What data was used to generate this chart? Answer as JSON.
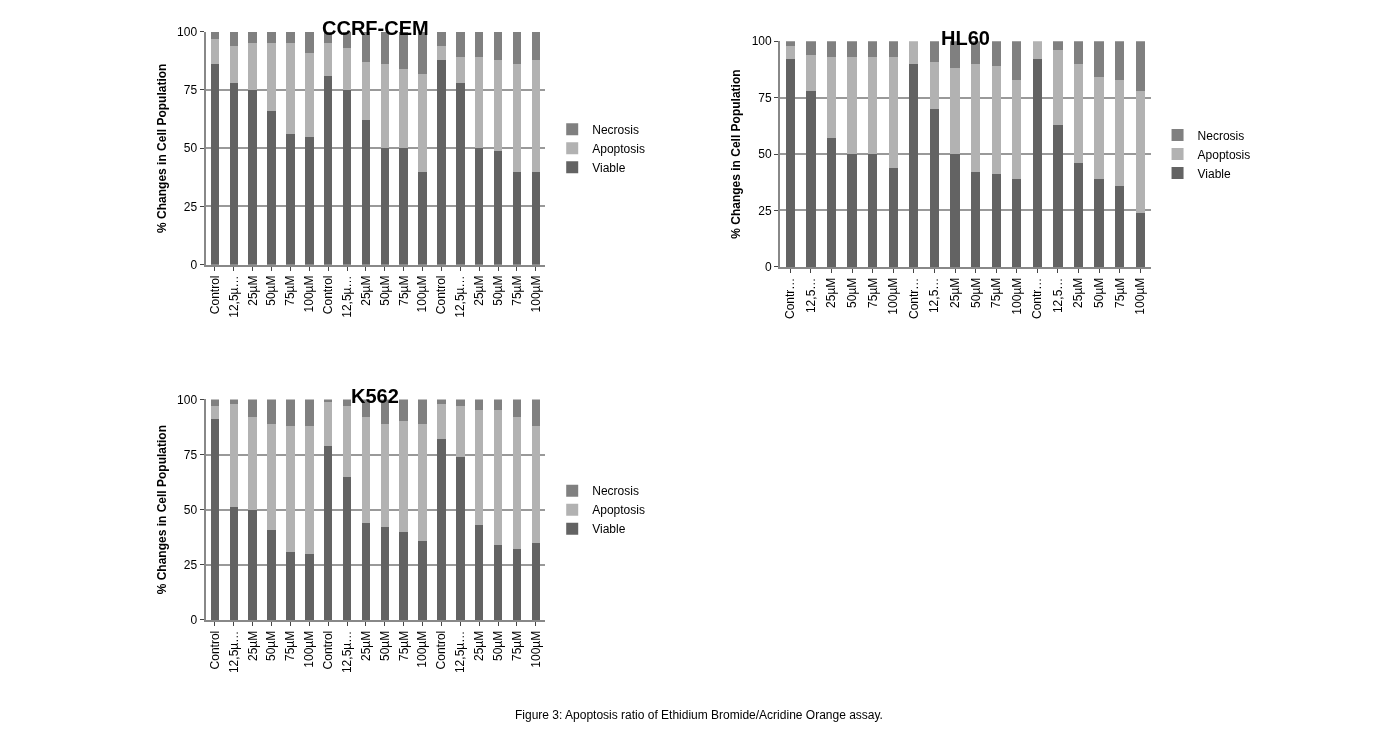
{
  "chart_data": [
    {
      "type": "bar",
      "stacked": true,
      "title": "CCRF-CEM",
      "ylabel": "% Changes in Cell Population",
      "categories": [
        "Control",
        "12,5µ…",
        "25µM",
        "50µM",
        "75µM",
        "100µM",
        "Control",
        "12,5µ…",
        "25µM",
        "50µM",
        "75µM",
        "100µM",
        "Control",
        "12,5µ…",
        "25µM",
        "50µM",
        "75µM",
        "100µM"
      ],
      "ylim": [
        0,
        100
      ],
      "yticks": [
        0,
        25,
        50,
        75,
        100
      ],
      "grid": "y",
      "legend": "right",
      "series": [
        {
          "name": "Viable",
          "color": "#636363",
          "values": [
            86,
            78,
            75,
            66,
            56,
            55,
            81,
            75,
            62,
            50,
            50,
            40,
            88,
            78,
            50,
            49,
            40,
            40
          ]
        },
        {
          "name": "Apoptosis",
          "color": "#b2b2b2",
          "values": [
            11,
            16,
            20,
            29,
            39,
            36,
            14,
            18,
            25,
            36,
            34,
            42,
            6,
            11,
            39,
            39,
            46,
            48
          ]
        },
        {
          "name": "Necrosis",
          "color": "#808080",
          "values": [
            3,
            6,
            5,
            5,
            5,
            9,
            5,
            7,
            13,
            14,
            16,
            18,
            6,
            11,
            11,
            12,
            14,
            12
          ]
        }
      ]
    },
    {
      "type": "bar",
      "stacked": true,
      "title": "HL60",
      "ylabel": "% Changes in Cell Population",
      "categories": [
        "Contr…",
        "12,5…",
        "25µM",
        "50µM",
        "75µM",
        "100µM",
        "Contr…",
        "12,5…",
        "25µM",
        "50µM",
        "75µM",
        "100µM",
        "Contr…",
        "12,5…",
        "25µM",
        "50µM",
        "75µM",
        "100µM"
      ],
      "ylim": [
        0,
        100
      ],
      "yticks": [
        0,
        25,
        50,
        75,
        100
      ],
      "grid": "y",
      "legend": "right",
      "series": [
        {
          "name": "Viable",
          "color": "#636363",
          "values": [
            92,
            78,
            57,
            50,
            50,
            44,
            90,
            70,
            50,
            42,
            41,
            39,
            92,
            63,
            46,
            39,
            36,
            24
          ]
        },
        {
          "name": "Apoptosis",
          "color": "#b2b2b2",
          "values": [
            6,
            16,
            36,
            43,
            43,
            49,
            10,
            21,
            38,
            48,
            48,
            44,
            8,
            33,
            44,
            45,
            47,
            54
          ]
        },
        {
          "name": "Necrosis",
          "color": "#808080",
          "values": [
            2,
            6,
            7,
            7,
            7,
            7,
            0,
            9,
            12,
            10,
            11,
            17,
            0,
            4,
            10,
            16,
            17,
            22
          ]
        }
      ]
    },
    {
      "type": "bar",
      "stacked": true,
      "title": "K562",
      "ylabel": "% Changes in Cell Population",
      "categories": [
        "Control",
        "12,5µ…",
        "25µM",
        "50µM",
        "75µM",
        "100µM",
        "Control",
        "12,5µ…",
        "25µM",
        "50µM",
        "75µM",
        "100µM",
        "Control",
        "12,5µ…",
        "25µM",
        "50µM",
        "75µM",
        "100µM"
      ],
      "ylim": [
        0,
        100
      ],
      "yticks": [
        0,
        25,
        50,
        75,
        100
      ],
      "grid": "y",
      "legend": "right",
      "annotations": [
        "Figure 3: Apoptosis ratio of Ethidium Bromide/Acridine Orange assay."
      ],
      "series": [
        {
          "name": "Viable",
          "color": "#636363",
          "values": [
            91,
            51,
            50,
            41,
            31,
            30,
            79,
            65,
            44,
            42,
            40,
            36,
            82,
            74,
            43,
            34,
            32,
            35
          ]
        },
        {
          "name": "Apoptosis",
          "color": "#b2b2b2",
          "values": [
            6,
            47,
            42,
            48,
            57,
            58,
            20,
            32,
            48,
            47,
            50,
            53,
            16,
            23,
            52,
            61,
            60,
            53
          ]
        },
        {
          "name": "Necrosis",
          "color": "#808080",
          "values": [
            3,
            2,
            8,
            11,
            12,
            12,
            1,
            3,
            8,
            11,
            10,
            11,
            2,
            3,
            5,
            5,
            8,
            12
          ]
        }
      ]
    }
  ]
}
